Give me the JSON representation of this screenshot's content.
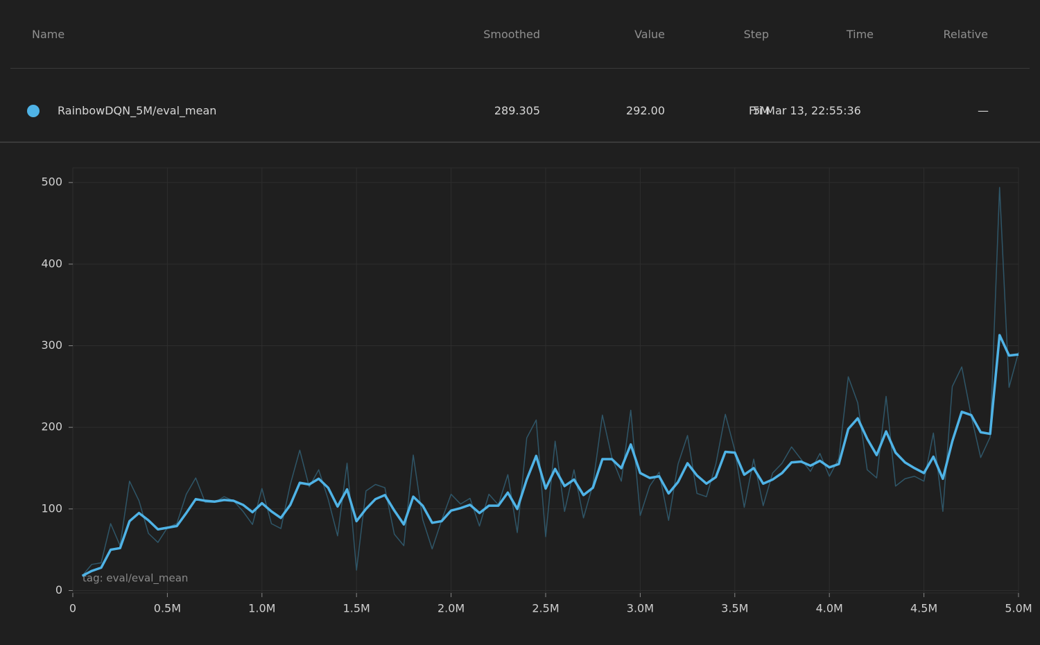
{
  "table": {
    "columns": [
      "Name",
      "Smoothed",
      "Value",
      "Step",
      "Time",
      "Relative"
    ],
    "rows": [
      {
        "name": "RainbowDQN_5M/eval_mean",
        "smoothed": "289.305",
        "value": "292.00",
        "step": "5M",
        "time": "Fri Mar 13, 22:55:36",
        "relative": "—"
      }
    ]
  },
  "chart_data": {
    "type": "line",
    "annotation": "tag: eval/eval_mean",
    "x": [
      50000,
      100000,
      150000,
      200000,
      250000,
      300000,
      350000,
      400000,
      450000,
      500000,
      550000,
      600000,
      650000,
      700000,
      750000,
      800000,
      850000,
      900000,
      950000,
      1000000,
      1050000,
      1100000,
      1150000,
      1200000,
      1250000,
      1300000,
      1350000,
      1400000,
      1450000,
      1500000,
      1550000,
      1600000,
      1650000,
      1700000,
      1750000,
      1800000,
      1850000,
      1900000,
      1950000,
      2000000,
      2050000,
      2100000,
      2150000,
      2200000,
      2250000,
      2300000,
      2350000,
      2400000,
      2450000,
      2500000,
      2550000,
      2600000,
      2650000,
      2700000,
      2750000,
      2800000,
      2850000,
      2900000,
      2950000,
      3000000,
      3050000,
      3100000,
      3150000,
      3200000,
      3250000,
      3300000,
      3350000,
      3400000,
      3450000,
      3500000,
      3550000,
      3600000,
      3650000,
      3700000,
      3750000,
      3800000,
      3850000,
      3900000,
      3950000,
      4000000,
      4050000,
      4100000,
      4150000,
      4200000,
      4250000,
      4300000,
      4350000,
      4400000,
      4450000,
      4500000,
      4550000,
      4600000,
      4650000,
      4700000,
      4750000,
      4800000,
      4850000,
      4900000,
      4950000,
      5000000
    ],
    "series": [
      {
        "color": "#2f5668",
        "values": [
          18,
          32,
          34,
          82,
          55,
          134,
          110,
          70,
          59,
          77,
          82,
          118,
          138,
          108,
          108,
          115,
          110,
          97,
          81,
          125,
          82,
          76,
          130,
          172,
          127,
          148,
          112,
          67,
          156,
          25,
          122,
          130,
          126,
          69,
          55,
          166,
          87,
          51,
          86,
          118,
          106,
          113,
          79,
          118,
          105,
          142,
          71,
          187,
          209,
          66,
          183,
          97,
          148,
          89,
          130,
          215,
          163,
          134,
          221,
          92,
          128,
          145,
          86,
          155,
          190,
          119,
          115,
          155,
          216,
          172,
          102,
          161,
          104,
          144,
          156,
          176,
          161,
          146,
          168,
          140,
          162,
          262,
          230,
          148,
          138,
          238,
          128,
          137,
          140,
          134,
          193,
          97,
          250,
          274,
          214,
          163,
          188,
          494,
          249,
          292
        ]
      },
      {
        "color": "#4fb3e6",
        "values": [
          18,
          24,
          28,
          50,
          52,
          85,
          95,
          86,
          75,
          77,
          79,
          95,
          112,
          110,
          109,
          111,
          110,
          105,
          96,
          107,
          97,
          89,
          105,
          132,
          130,
          137,
          126,
          103,
          124,
          85,
          100,
          112,
          117,
          98,
          81,
          115,
          104,
          83,
          85,
          98,
          101,
          105,
          95,
          104,
          104,
          120,
          100,
          136,
          165,
          125,
          149,
          128,
          136,
          117,
          126,
          161,
          161,
          150,
          179,
          144,
          138,
          140,
          119,
          133,
          156,
          141,
          131,
          139,
          170,
          169,
          142,
          150,
          131,
          136,
          144,
          157,
          158,
          153,
          159,
          151,
          155,
          198,
          211,
          186,
          166,
          195,
          169,
          157,
          150,
          144,
          164,
          137,
          183,
          219,
          215,
          194,
          192,
          313,
          288,
          289.305
        ]
      }
    ],
    "xlim": [
      0,
      5000000
    ],
    "ylim": [
      -3,
      518
    ],
    "xticks": [
      0,
      {
        "value": 500000,
        "label": "0.5M"
      },
      {
        "value": 1000000,
        "label": "1.0M"
      },
      {
        "value": 1500000,
        "label": "1.5M"
      },
      {
        "value": 2000000,
        "label": "2.0M"
      },
      {
        "value": 2500000,
        "label": "2.5M"
      },
      {
        "value": 3000000,
        "label": "3.0M"
      },
      {
        "value": 3500000,
        "label": "3.5M"
      },
      {
        "value": 4000000,
        "label": "4.0M"
      },
      {
        "value": 4500000,
        "label": "4.5M"
      },
      {
        "value": 5000000,
        "label": "5.0M"
      }
    ],
    "yticks": [
      0,
      100,
      200,
      300,
      400,
      500
    ],
    "grid": true
  }
}
